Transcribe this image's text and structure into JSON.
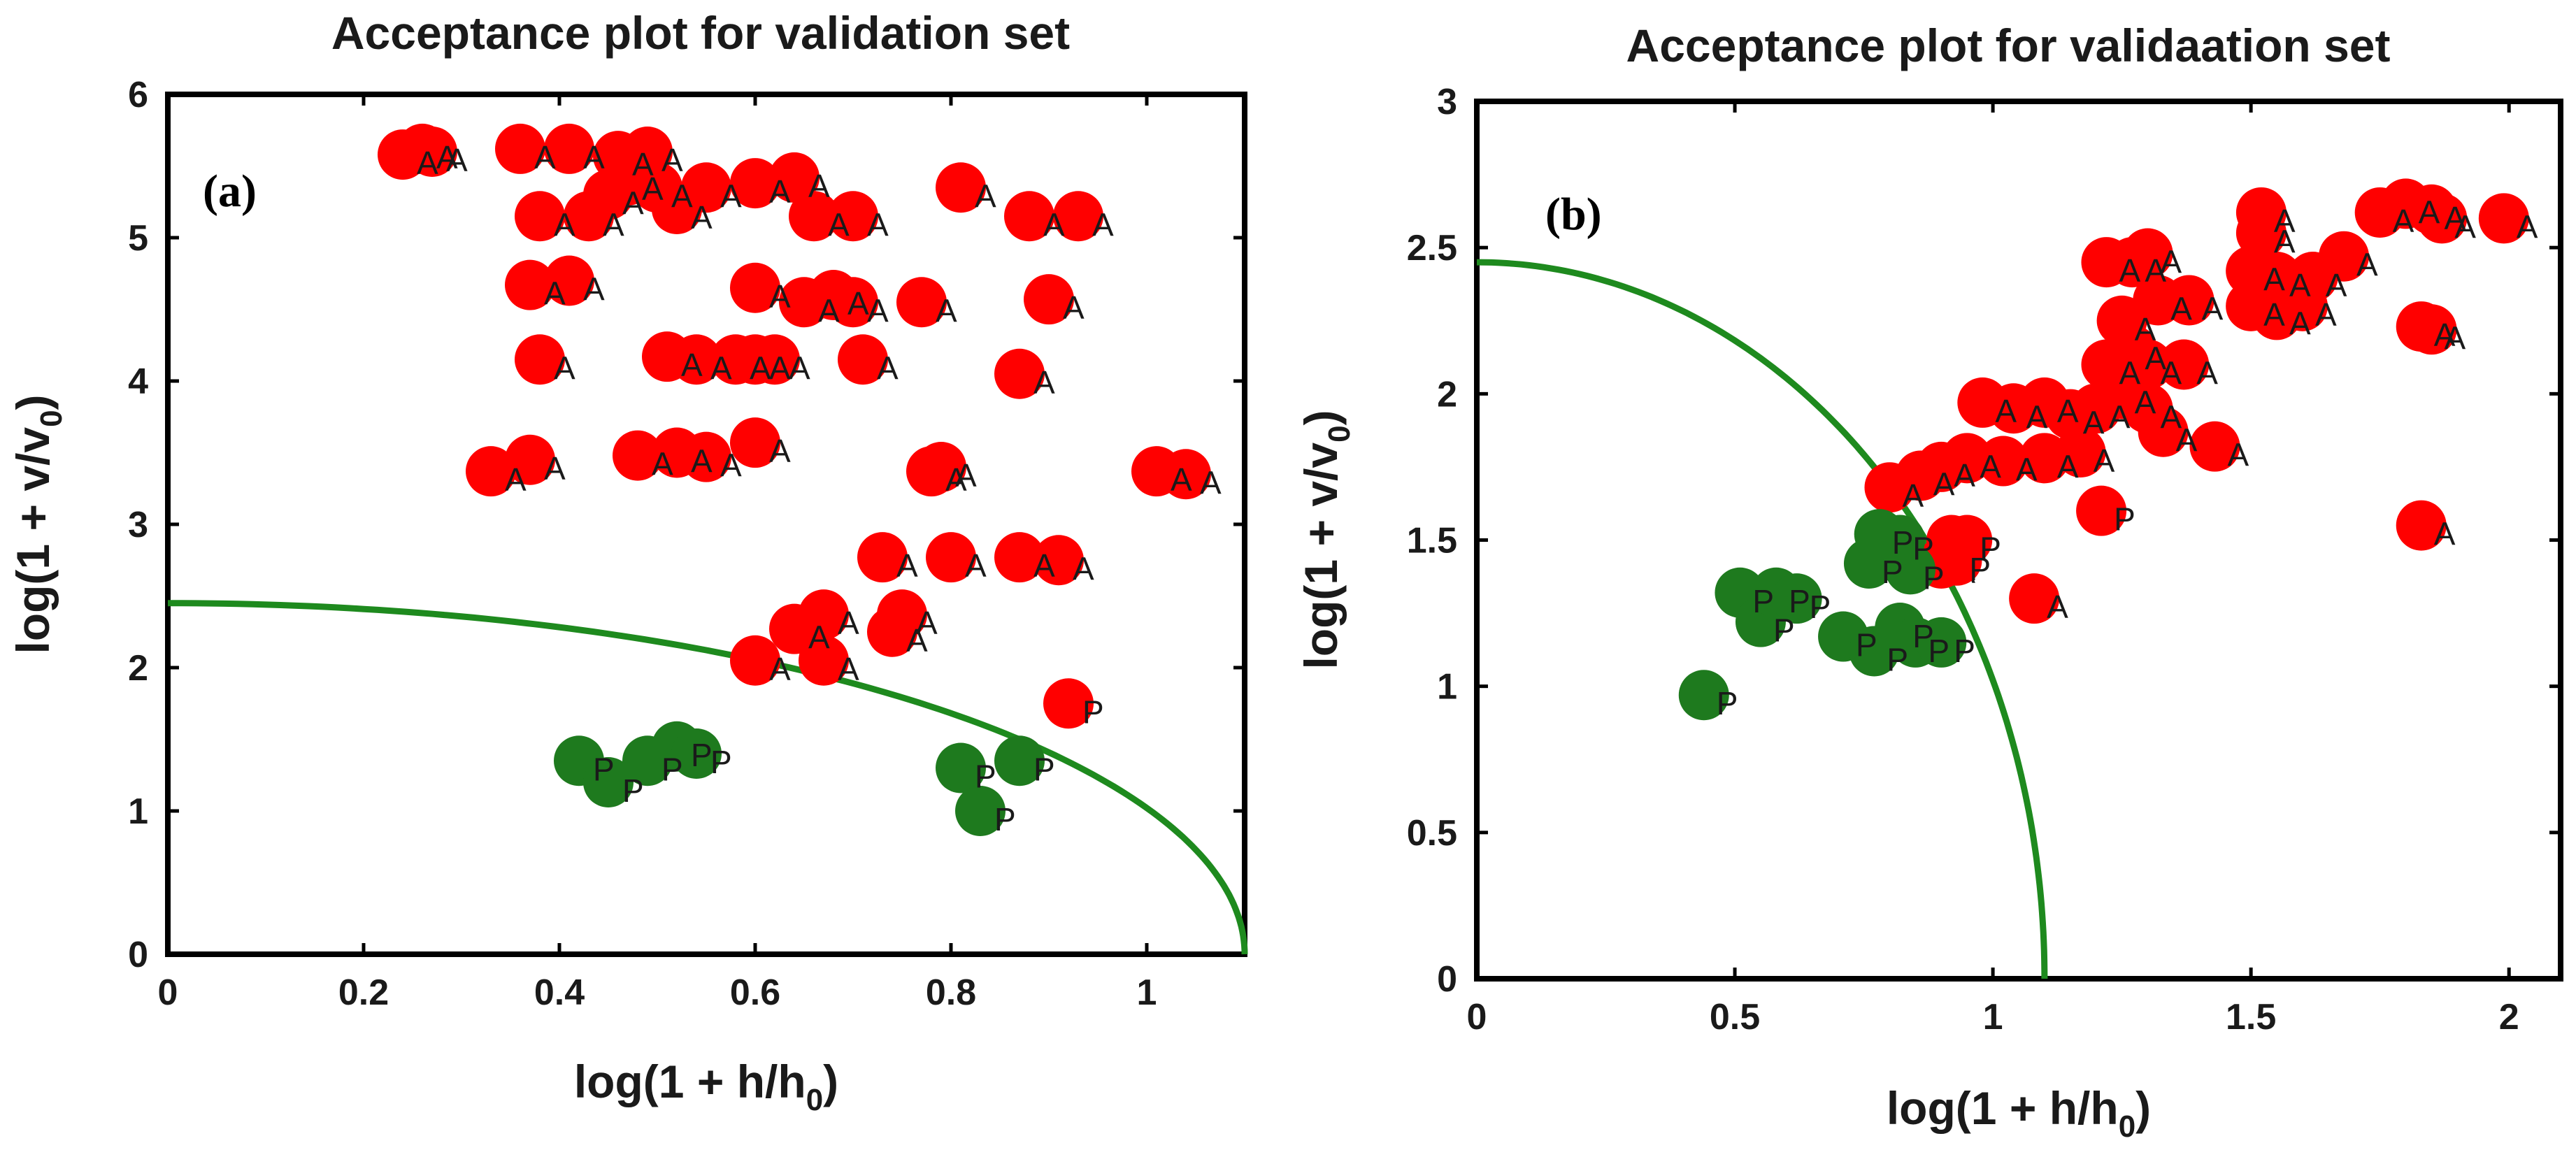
{
  "colors": {
    "accepted": "#ff0000",
    "prediction": "#1e7a1e",
    "curve": "#1e8a1e",
    "frame": "#000000"
  },
  "chart_data": [
    {
      "type": "scatter",
      "panel_label": "(a)",
      "title": "Acceptance plot for validation set",
      "xlabel": "log(1 + h/h",
      "xlabel_sub": "0",
      "xlabel_end": ")",
      "ylabel": "log(1 + v/v",
      "ylabel_sub": "0",
      "ylabel_end": ")",
      "xlim": [
        0,
        1.1
      ],
      "ylim": [
        0,
        6
      ],
      "xticks": [
        0,
        0.2,
        0.4,
        0.6,
        0.8,
        1
      ],
      "xtick_labels": [
        "0",
        "0.2",
        "0.4",
        "0.6",
        "0.8",
        "1"
      ],
      "yticks": [
        0,
        1,
        2,
        3,
        4,
        5,
        6
      ],
      "ytick_labels": [
        "0",
        "1",
        "2",
        "3",
        "4",
        "5",
        "6"
      ],
      "curve": {
        "name": "acceptance boundary",
        "x_intercept": 1.1,
        "y_intercept": 2.45
      },
      "series": [
        {
          "name": "A",
          "color": "accepted",
          "points": [
            [
              0.24,
              5.58
            ],
            [
              0.26,
              5.62
            ],
            [
              0.27,
              5.6
            ],
            [
              0.36,
              5.62
            ],
            [
              0.41,
              5.62
            ],
            [
              0.46,
              5.57
            ],
            [
              0.49,
              5.6
            ],
            [
              0.38,
              5.15
            ],
            [
              0.43,
              5.15
            ],
            [
              0.45,
              5.3
            ],
            [
              0.47,
              5.4
            ],
            [
              0.5,
              5.35
            ],
            [
              0.52,
              5.2
            ],
            [
              0.55,
              5.35
            ],
            [
              0.6,
              5.38
            ],
            [
              0.64,
              5.42
            ],
            [
              0.66,
              5.15
            ],
            [
              0.7,
              5.15
            ],
            [
              0.81,
              5.35
            ],
            [
              0.88,
              5.15
            ],
            [
              0.93,
              5.15
            ],
            [
              0.37,
              4.67
            ],
            [
              0.41,
              4.7
            ],
            [
              0.6,
              4.65
            ],
            [
              0.65,
              4.55
            ],
            [
              0.68,
              4.6
            ],
            [
              0.7,
              4.55
            ],
            [
              0.77,
              4.55
            ],
            [
              0.9,
              4.57
            ],
            [
              0.38,
              4.15
            ],
            [
              0.51,
              4.17
            ],
            [
              0.54,
              4.15
            ],
            [
              0.58,
              4.15
            ],
            [
              0.6,
              4.15
            ],
            [
              0.62,
              4.15
            ],
            [
              0.71,
              4.15
            ],
            [
              0.87,
              4.05
            ],
            [
              0.33,
              3.37
            ],
            [
              0.37,
              3.45
            ],
            [
              0.48,
              3.48
            ],
            [
              0.52,
              3.5
            ],
            [
              0.55,
              3.47
            ],
            [
              0.6,
              3.57
            ],
            [
              0.78,
              3.37
            ],
            [
              0.79,
              3.4
            ],
            [
              1.01,
              3.37
            ],
            [
              1.04,
              3.35
            ],
            [
              0.73,
              2.77
            ],
            [
              0.8,
              2.77
            ],
            [
              0.87,
              2.77
            ],
            [
              0.91,
              2.75
            ],
            [
              0.6,
              2.05
            ],
            [
              0.64,
              2.27
            ],
            [
              0.67,
              2.37
            ],
            [
              0.67,
              2.05
            ],
            [
              0.74,
              2.25
            ],
            [
              0.75,
              2.37
            ]
          ]
        },
        {
          "name": "P (red)",
          "color": "accepted",
          "points": [
            [
              0.92,
              1.75
            ]
          ]
        },
        {
          "name": "P",
          "color": "prediction",
          "points": [
            [
              0.42,
              1.35
            ],
            [
              0.45,
              1.2
            ],
            [
              0.49,
              1.35
            ],
            [
              0.52,
              1.45
            ],
            [
              0.54,
              1.4
            ],
            [
              0.81,
              1.3
            ],
            [
              0.83,
              1.0
            ],
            [
              0.87,
              1.35
            ]
          ]
        }
      ]
    },
    {
      "type": "scatter",
      "panel_label": "(b)",
      "title": "Acceptance plot for validaation set",
      "xlabel": "log(1 + h/h",
      "xlabel_sub": "0",
      "xlabel_end": ")",
      "ylabel": "log(1 + v/v",
      "ylabel_sub": "0",
      "ylabel_end": ")",
      "xlim": [
        0,
        2.1
      ],
      "ylim": [
        0,
        3
      ],
      "xticks": [
        0,
        0.5,
        1,
        1.5,
        2
      ],
      "xtick_labels": [
        "0",
        "0.5",
        "1",
        "1.5",
        "2"
      ],
      "yticks": [
        0,
        0.5,
        1,
        1.5,
        2,
        2.5,
        3
      ],
      "ytick_labels": [
        "0",
        "0.5",
        "1",
        "1.5",
        "2",
        "2.5",
        "3"
      ],
      "curve": {
        "name": "acceptance boundary",
        "x_intercept": 1.1,
        "y_intercept": 2.45
      },
      "series": [
        {
          "name": "A",
          "color": "accepted",
          "points": [
            [
              0.8,
              1.68
            ],
            [
              0.86,
              1.72
            ],
            [
              0.9,
              1.75
            ],
            [
              0.95,
              1.78
            ],
            [
              1.02,
              1.77
            ],
            [
              1.1,
              1.78
            ],
            [
              1.17,
              1.8
            ],
            [
              0.92,
              1.5
            ],
            [
              0.9,
              1.42
            ],
            [
              1.08,
              1.3
            ],
            [
              0.98,
              1.97
            ],
            [
              1.04,
              1.95
            ],
            [
              1.1,
              1.97
            ],
            [
              1.15,
              1.93
            ],
            [
              1.2,
              1.95
            ],
            [
              1.25,
              2.0
            ],
            [
              1.3,
              1.95
            ],
            [
              1.33,
              1.87
            ],
            [
              1.43,
              1.82
            ],
            [
              1.22,
              2.1
            ],
            [
              1.27,
              2.15
            ],
            [
              1.3,
              2.1
            ],
            [
              1.37,
              2.1
            ],
            [
              1.22,
              2.45
            ],
            [
              1.27,
              2.45
            ],
            [
              1.3,
              2.48
            ],
            [
              1.32,
              2.32
            ],
            [
              1.38,
              2.32
            ],
            [
              1.25,
              2.25
            ],
            [
              1.5,
              2.3
            ],
            [
              1.55,
              2.27
            ],
            [
              1.6,
              2.3
            ],
            [
              1.5,
              2.42
            ],
            [
              1.55,
              2.4
            ],
            [
              1.62,
              2.4
            ],
            [
              1.68,
              2.47
            ],
            [
              1.52,
              2.62
            ],
            [
              1.52,
              2.55
            ],
            [
              1.75,
              2.62
            ],
            [
              1.8,
              2.65
            ],
            [
              1.85,
              2.63
            ],
            [
              1.87,
              2.6
            ],
            [
              1.99,
              2.6
            ],
            [
              1.83,
              2.23
            ],
            [
              1.85,
              2.22
            ],
            [
              1.83,
              1.55
            ]
          ]
        },
        {
          "name": "P (red)",
          "color": "accepted",
          "points": [
            [
              1.21,
              1.6
            ],
            [
              0.93,
              1.43
            ],
            [
              0.95,
              1.5
            ]
          ]
        },
        {
          "name": "P",
          "color": "prediction",
          "points": [
            [
              0.78,
              1.52
            ],
            [
              0.76,
              1.42
            ],
            [
              0.84,
              1.4
            ],
            [
              0.82,
              1.5
            ],
            [
              0.51,
              1.32
            ],
            [
              0.55,
              1.22
            ],
            [
              0.58,
              1.32
            ],
            [
              0.62,
              1.3
            ],
            [
              0.71,
              1.17
            ],
            [
              0.77,
              1.12
            ],
            [
              0.82,
              1.2
            ],
            [
              0.85,
              1.15
            ],
            [
              0.9,
              1.15
            ],
            [
              0.44,
              0.97
            ]
          ]
        }
      ]
    }
  ]
}
